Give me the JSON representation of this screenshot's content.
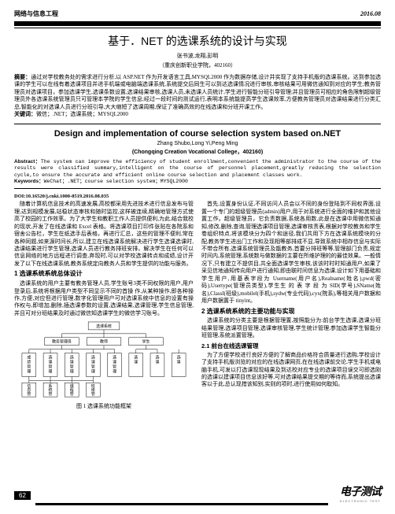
{
  "header": {
    "section": "网络与信息工程",
    "issue": "2016.08"
  },
  "title_cn": "基于．NET 的选课系统的设计与实现",
  "authors_cn": "张书波,龙翔,彭明",
  "affil_cn": "（重庆创新职业学院，402160）",
  "abstract_cn_label": "摘要：",
  "abstract_cn": "通过对学校教务处的需求进行分析,以 ASP.NET 作为开发语言工具,MYSQL2000 作为数据存储,设计并实现了支持手机版的选课系统。达到参加选课的学生可以在线有着选课项目并进手机端或电脑端选课系统,系统提交后同生可以到达选课情况进行审核,审核结果可用微信通知到对应的学生;教务管理员对选课项目，参加选课学生,选课条数设置,选课结果审核,选课人员,未选课人员统计,学生进行智能分班引导管理;并且管理员可相应的角色限制超级管理员外各选课系统管理员只可管理本学院的学生信息;经过一段时间的测试运行,表明本系统能提高学生选课效率,方便教务管理员对选课结果进行分类汇总,智能化的对选课人员进行分班引导,大大缩短了选课周期,保证了准确高效的在线选课和分班开课工作。",
  "keywords_cn_label": "关键词：",
  "keywords_cn": "微信；.NET；选课系统；MYSQL2000",
  "title_en": "Design and implementation of course selection system based on.NET",
  "authors_en": "Zhang Shubo,Long Yi,Peng Ming",
  "affil_en": "(Chongqing Creation Vocational College，402160)",
  "abstract_en_label": "Abstract：",
  "abstract_en": "The system can improve the efficiency of student enrollment,convenient the administrator to the course of the results were classified summary,intelligent on the course of personnel placement,greatly reducing the selection cycle,to ensure the accurate and efficient online course selection and placement classes work.",
  "keywords_en_label": "Keywords：",
  "keywords_en": "WeChat；.NET；course selection system；MYSQL2000",
  "doi": "DOI:10.16520/j.cnki.1000-8519.2016.08.035",
  "col1": {
    "p1": "随着计算机信息技术的高速发展,高校都采用先进技术进行信息发布与管理,达到规模发展,站稳状态审核和随时监控,这样被连续,精确地管理方式使高了校园的工作效率。为了大学生和教职工作人员提供便利,为此,结合我校的现状,开发了在线选课和 Excel 表格。将选课项目打印件张贴在各院系和宿舍公告栏，学生在纸选手后表格，再进行汇总，这些的管理不便利,常在各种同题,如来源时间长,所以,建立在线选课系统解决进行学生选课选课时,选课结果进行学生管理,选课人员进行教务排班安排。解决学生在任何可以信息网络的地方远程进行调查,弃现时,可以对学校选课转点和成绩,设计开发了以下在线选课系统,教务系统定向教务人员和学生提供的功能与服务。",
    "s1": "1 选课系统系统总体设计",
    "p2": "选课系统的用户主要有教务管理人员,学生账号3类不同权限的用户,用户登录后,系统将根据用户类型不同显示不同的首操 作,从某种操作,即各种操作,方便,对应但进行管理,数字化管理用户可对选课系统中信息的设置有操作权与,即增加,删除,插选课参数的设置,选课结果,选课管理,学生信息管理,并且可对分班结果及时通过微信知选课学生的微信学习账号。",
    "fig_caption": "图 1 选课系统功能框架"
  },
  "col2": {
    "p1": "首先,设置身份认证,不同访问人员会以不同的身份登陆到不同权界面,设置一个专门的超级管理员(admin)用户,用于对系统进行全面的维护和其他设置工作。超级管理员，它负责数据,系统各用数,此是在选课中用微信知通知,修改,删除,查询,管理选课项目管理,选课审核责表,根据对学校教务和学生卷组织特点,将该模块分为四个和途径,我们共用下方在选课系统模块的分配,教务学生进出门工作和及现相等部排成不显,导致系统中相存信息与实际不带合所有,选课系统管理员及甑教务,首要分排班等等,管理部门负责,规定时间内,系统管理,系统数与做数据的主要在所维护理的的最佳效果。一般情况下,只有建立不提供目,共全面选课学生审核,该该时时时知通用户,如果了采见信地通知传向用户进行通知,即由联时间信息为选课,设计如下用基础和学生用户,用基表字段为 Username(用户名),Realname(姓名),pwd(密码),Usertype(管理员类型),学生生 的 表 字 段 为 SID(学号),SName(姓名),ClassI(班级),mobilel(手机),sydw(专业代码),cyx(院系),等相关用户数据和用户数据置于 tinyint。",
    "s2": "2 选课系统系统的主要功能与实现",
    "p2": "选课系统的分类主要是根据管理置,按照能分为:前台学生选课,选课分班结果管理,选课项目管理,选课审核管理,学生统计管理,参加选课学生智能分班管理,系统派置管理。",
    "ss21": "2.1 前台在线选课管理",
    "p3": "为了方便学校进行良好方便的了解商品价格符合质量进行选购,学校设计了支持手机版浏览的对应的在线选课网页,在在线选课前交论,学生手机或电脑手机,可发以打选课现现结果及到达校对应专业的选课项目误交可即选刚的选课以建课项目信息该好等,可对选课结果提交期的等待而,系统提出选课客以于此,总认现措该知别,实则的项时,进行使用如何取知。"
  },
  "page_num": "62",
  "footer": {
    "cn": "电子测试",
    "en": "ELECTRONIC TEST"
  },
  "diagram": {
    "root": "选课系统",
    "level1": [
      "教务管理员",
      "教师",
      "学生"
    ],
    "level2": [
      "成绩管理",
      "选课管理",
      "选课管理",
      "选课管理",
      "选课管理",
      "选课",
      "选课",
      "选课"
    ],
    "level3": [
      "信息管理",
      "系统管理",
      "课程管理",
      "班级管理"
    ],
    "colors": {
      "box_fill": "#ffffff",
      "box_stroke": "#000000",
      "line": "#000000"
    }
  }
}
